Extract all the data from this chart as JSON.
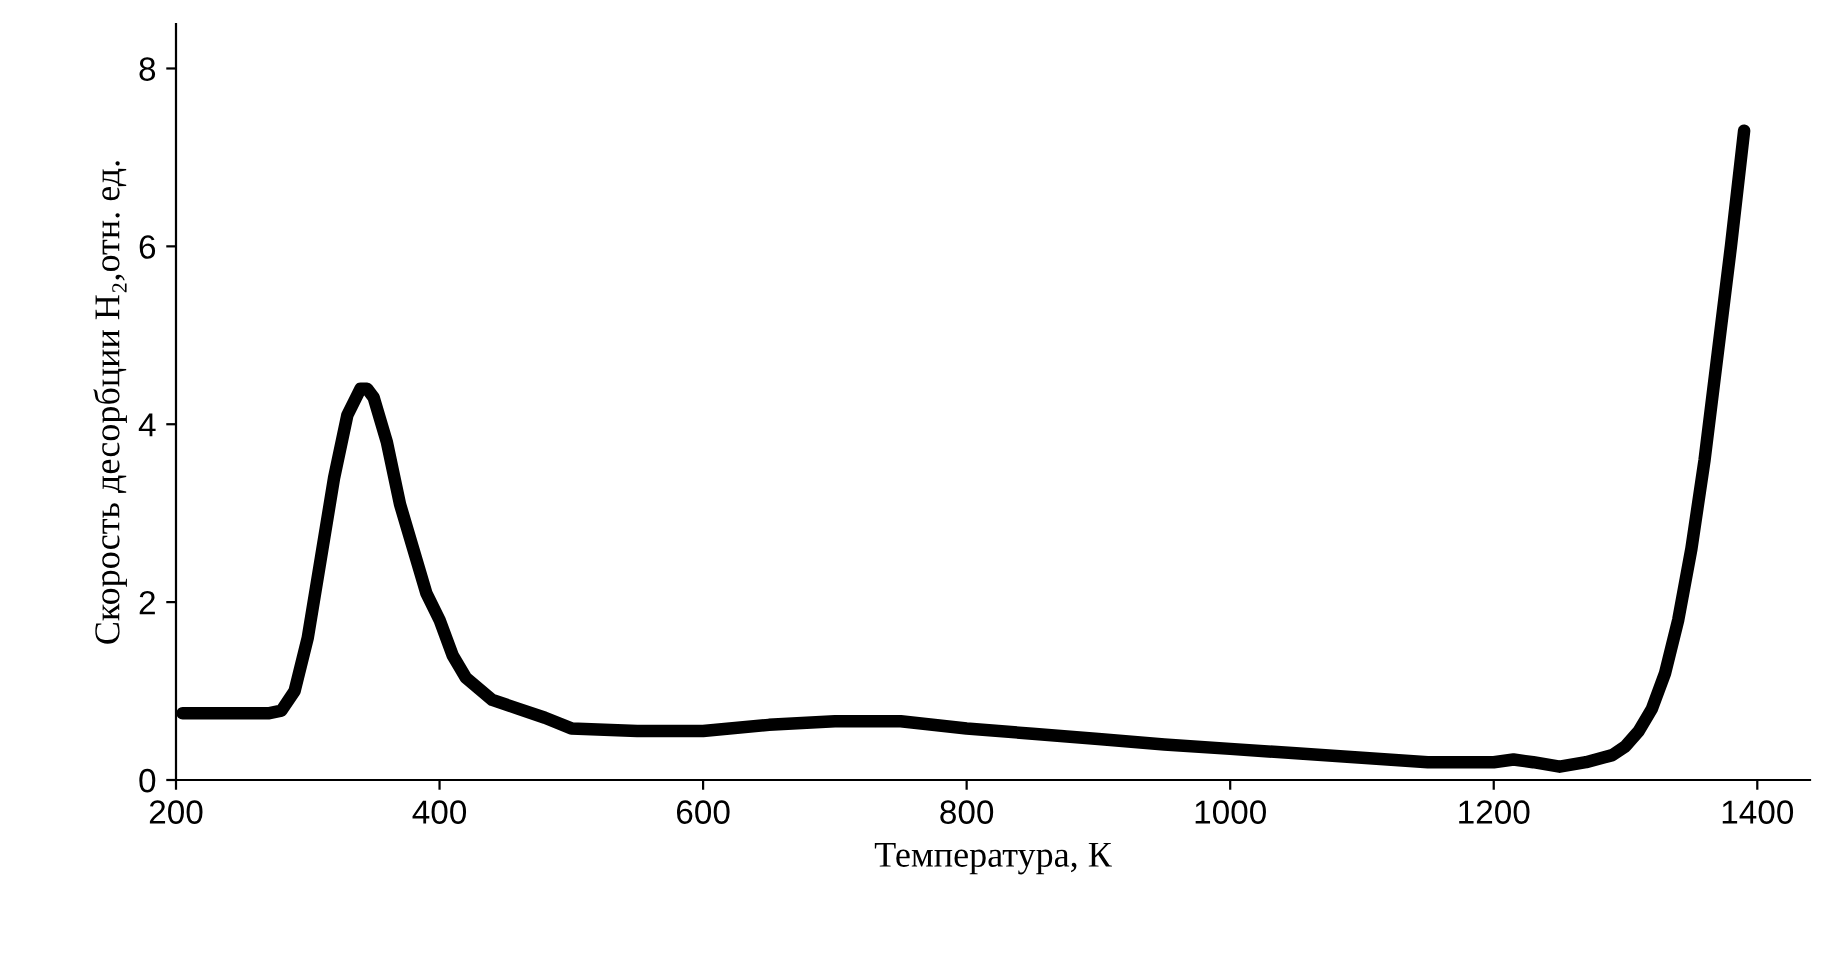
{
  "chart_data": {
    "type": "line",
    "xlabel": "Температура, К",
    "ylabel": "Скорость десорбции H₂,отн. ед.",
    "color": "#000000",
    "x": [
      205,
      240,
      270,
      280,
      290,
      300,
      310,
      320,
      330,
      340,
      345,
      350,
      360,
      370,
      380,
      390,
      400,
      410,
      420,
      440,
      460,
      480,
      500,
      550,
      600,
      650,
      700,
      750,
      800,
      850,
      900,
      950,
      1000,
      1050,
      1100,
      1150,
      1200,
      1215,
      1230,
      1250,
      1270,
      1290,
      1300,
      1310,
      1320,
      1330,
      1340,
      1350,
      1360,
      1370,
      1380,
      1390
    ],
    "values": [
      0.75,
      0.75,
      0.75,
      0.78,
      1.0,
      1.6,
      2.5,
      3.4,
      4.1,
      4.4,
      4.4,
      4.3,
      3.8,
      3.1,
      2.6,
      2.1,
      1.8,
      1.4,
      1.15,
      0.9,
      0.8,
      0.7,
      0.58,
      0.55,
      0.55,
      0.62,
      0.66,
      0.66,
      0.58,
      0.52,
      0.46,
      0.4,
      0.35,
      0.3,
      0.25,
      0.2,
      0.2,
      0.23,
      0.2,
      0.15,
      0.2,
      0.28,
      0.38,
      0.55,
      0.8,
      1.2,
      1.8,
      2.6,
      3.6,
      4.8,
      6.0,
      7.3
    ],
    "xlim": [
      200,
      1440
    ],
    "ylim": [
      0,
      8.5
    ],
    "xticks": [
      200,
      400,
      600,
      800,
      1000,
      1200,
      1400
    ],
    "yticks": [
      0,
      2,
      4,
      6,
      8
    ],
    "grid": false,
    "line_style": "solid",
    "marker": "none"
  }
}
